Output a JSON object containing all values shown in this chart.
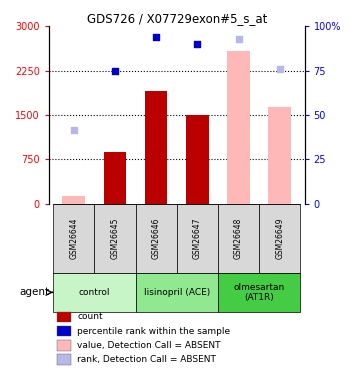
{
  "title": "GDS726 / X07729exon#5_s_at",
  "samples": [
    "GSM26644",
    "GSM26645",
    "GSM26646",
    "GSM26647",
    "GSM26648",
    "GSM26649"
  ],
  "bar_values_present": [
    null,
    870,
    1900,
    1500,
    null,
    null
  ],
  "bar_values_absent": [
    130,
    null,
    null,
    null,
    2580,
    1640
  ],
  "dot_left_present": [
    null,
    2250,
    2820,
    2700,
    null,
    null
  ],
  "dot_left_absent": [
    1250,
    null,
    null,
    null,
    2780,
    2280
  ],
  "ylim_left": [
    0,
    3000
  ],
  "ylim_right": [
    0,
    100
  ],
  "yticks_left": [
    0,
    750,
    1500,
    2250,
    3000
  ],
  "ytick_labels_left": [
    "0",
    "750",
    "1500",
    "2250",
    "3000"
  ],
  "yticks_right": [
    0,
    25,
    50,
    75,
    100
  ],
  "ytick_labels_right": [
    "0",
    "25",
    "50",
    "75",
    "100%"
  ],
  "groups": [
    {
      "label": "control",
      "span": [
        0,
        2
      ],
      "color": "#c8f5c8"
    },
    {
      "label": "lisinopril (ACE)",
      "span": [
        2,
        4
      ],
      "color": "#90e890"
    },
    {
      "label": "olmesartan\n(AT1R)",
      "span": [
        4,
        6
      ],
      "color": "#44cc44"
    }
  ],
  "color_bar_present": "#bb0000",
  "color_bar_absent": "#ffb8b8",
  "color_dot_present": "#0000cc",
  "color_dot_absent": "#b8b8e8",
  "bar_width": 0.55,
  "legend_items": [
    {
      "color": "#bb0000",
      "label": "count"
    },
    {
      "color": "#0000cc",
      "label": "percentile rank within the sample"
    },
    {
      "color": "#ffb8b8",
      "label": "value, Detection Call = ABSENT"
    },
    {
      "color": "#b8b8e8",
      "label": "rank, Detection Call = ABSENT"
    }
  ]
}
